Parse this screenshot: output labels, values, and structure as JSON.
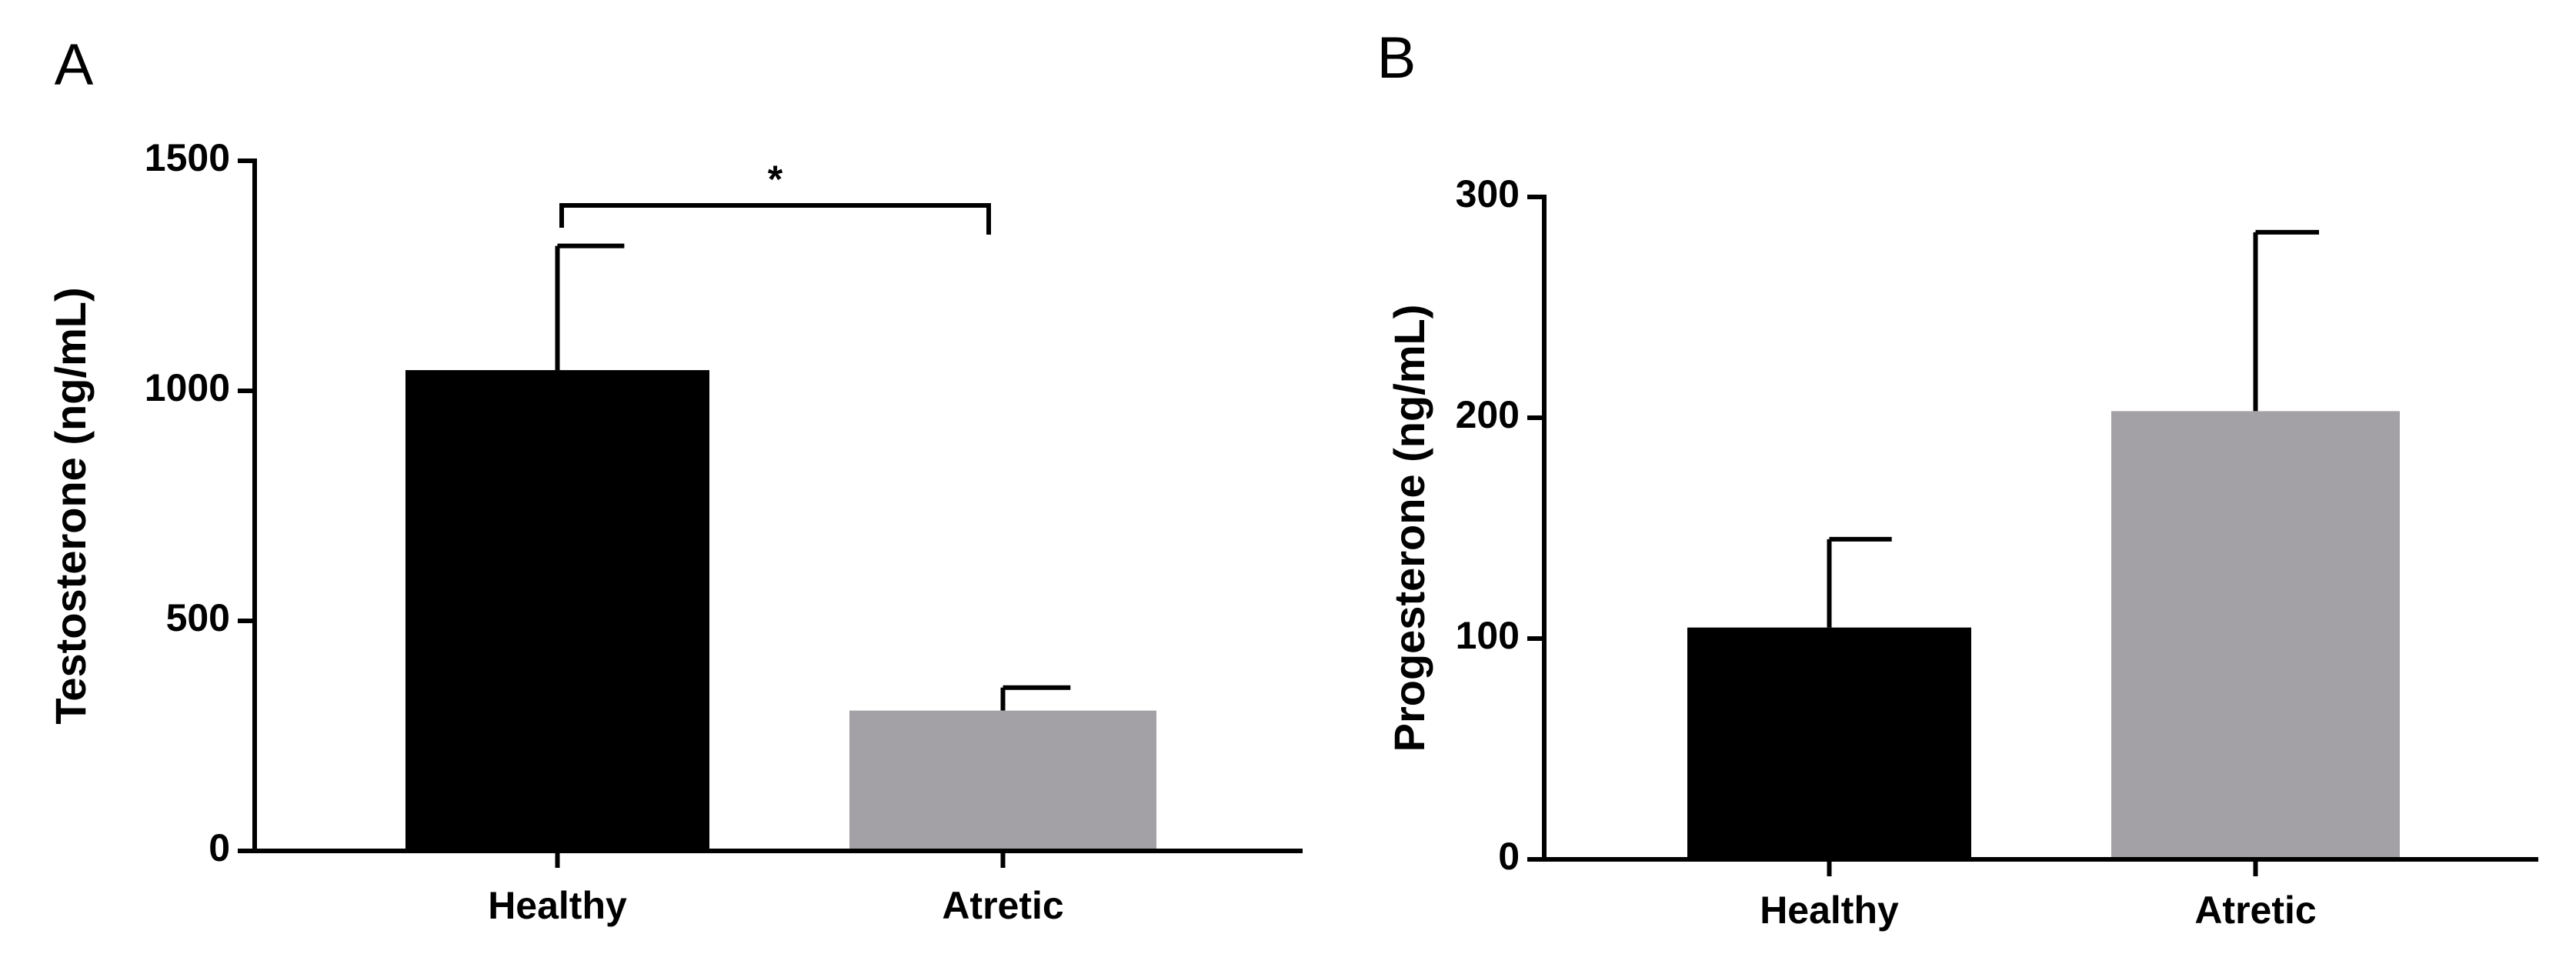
{
  "chart_data": [
    {
      "type": "bar",
      "panel": "A",
      "ylabel": "Testosterone (ng/mL)",
      "categories": [
        "Healthy",
        "Atretic"
      ],
      "values": [
        1045,
        305
      ],
      "errors": [
        270,
        50
      ],
      "colors": [
        "#000000",
        "#a3a1a6"
      ],
      "ylim": [
        0,
        1500
      ],
      "yticks": [
        0,
        500,
        1000,
        1500
      ],
      "annotation": "*"
    },
    {
      "type": "bar",
      "panel": "B",
      "ylabel": "Progesterone (ng/mL)",
      "categories": [
        "Healthy",
        "Atretic"
      ],
      "values": [
        105,
        203
      ],
      "errors": [
        40,
        81
      ],
      "colors": [
        "#000000",
        "#a3a1a6"
      ],
      "ylim": [
        0,
        300
      ],
      "yticks": [
        0,
        100,
        200,
        300
      ]
    }
  ]
}
